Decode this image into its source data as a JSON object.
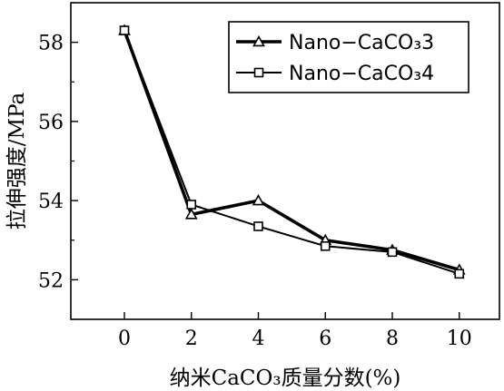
{
  "chart_data": {
    "type": "line",
    "x": [
      0,
      2,
      4,
      6,
      8,
      10
    ],
    "xticks": [
      "0",
      "2",
      "4",
      "6",
      "8",
      "10"
    ],
    "yticks": [
      "52",
      "54",
      "56",
      "58"
    ],
    "xlim": [
      -1.6,
      11.2
    ],
    "ylim": [
      51.0,
      59.0
    ],
    "xlabel": "纳米CaCO₃质量分数(%)",
    "ylabel": "拉伸强度/MPa",
    "legend_position": "top-right",
    "series": [
      {
        "name": "Nano−CaCO₃3",
        "marker": "triangle",
        "values": [
          58.3,
          53.65,
          54.0,
          53.0,
          52.75,
          52.25
        ]
      },
      {
        "name": "Nano−CaCO₃4",
        "marker": "square",
        "values": [
          58.3,
          53.9,
          53.35,
          52.85,
          52.7,
          52.15
        ]
      }
    ],
    "grid": false
  }
}
